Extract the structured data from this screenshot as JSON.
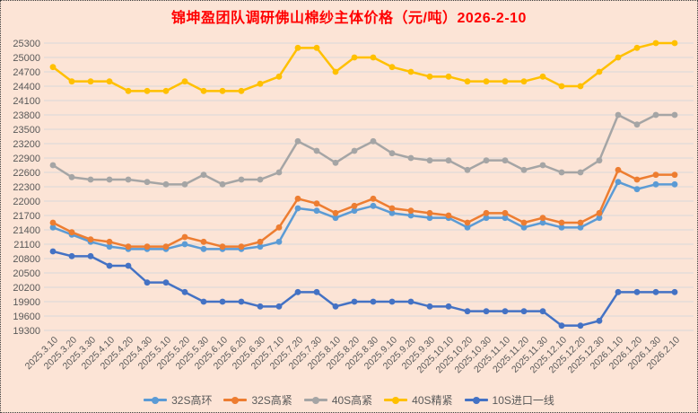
{
  "title": "锦坤盈团队调研佛山棉纱主体价格（元/吨）2026-2-10",
  "colors": {
    "background": "#FCE4D6",
    "title": "#FF0000",
    "gridline": "#D9D9D9",
    "axis_text": "#595959"
  },
  "chart_data": {
    "type": "line",
    "title": "锦坤盈团队调研佛山棉纱主体价格（元/吨）2026-2-10",
    "xlabel": "",
    "ylabel": "",
    "ylim": [
      19300,
      25300
    ],
    "ytick_step": 300,
    "grid": true,
    "legend_position": "bottom",
    "categories": [
      "2025.3.10",
      "2025.3.20",
      "2025.3.30",
      "2025.4.10",
      "2025.4.20",
      "2025.4.30",
      "2025.5.10",
      "2025.5.20",
      "2025.5.30",
      "2025.6.10",
      "2025.6.20",
      "2025.6.30",
      "2025.7.10",
      "2025.7.20",
      "2025.7.30",
      "2025.8.10",
      "2025.8.20",
      "2025.8.30",
      "2025.9.10",
      "2025.9.20",
      "2025.9.30",
      "2025.10.10",
      "2025.10.20",
      "2025.10.30",
      "2025.11.10",
      "2025.11.20",
      "2025.11.30",
      "2025.12.10",
      "2025.12.20",
      "2025.12.30",
      "2026.1.10",
      "2026.1.20",
      "2026.1.30",
      "2026.2.10"
    ],
    "series": [
      {
        "name": "32S高环",
        "color": "#5B9BD5",
        "values": [
          21450,
          21300,
          21150,
          21050,
          21000,
          21000,
          21000,
          21100,
          21000,
          21000,
          21000,
          21050,
          21150,
          21850,
          21800,
          21650,
          21800,
          21900,
          21750,
          21700,
          21650,
          21650,
          21450,
          21650,
          21650,
          21450,
          21550,
          21450,
          21450,
          21650,
          22400,
          22250,
          22350,
          22350
        ]
      },
      {
        "name": "32S高紧",
        "color": "#ED7D31",
        "values": [
          21550,
          21350,
          21200,
          21150,
          21050,
          21050,
          21050,
          21250,
          21150,
          21050,
          21050,
          21150,
          21450,
          22050,
          21950,
          21750,
          21900,
          22050,
          21850,
          21800,
          21750,
          21700,
          21550,
          21750,
          21750,
          21550,
          21650,
          21550,
          21550,
          21750,
          22650,
          22450,
          22550,
          22550
        ]
      },
      {
        "name": "40S高紧",
        "color": "#A5A5A5",
        "values": [
          22750,
          22500,
          22450,
          22450,
          22450,
          22400,
          22350,
          22350,
          22550,
          22350,
          22450,
          22450,
          22600,
          23250,
          23050,
          22800,
          23050,
          23250,
          23000,
          22900,
          22850,
          22850,
          22650,
          22850,
          22850,
          22650,
          22750,
          22600,
          22600,
          22850,
          23800,
          23600,
          23800,
          23800
        ]
      },
      {
        "name": "40S精紧",
        "color": "#FFC000",
        "values": [
          24800,
          24500,
          24500,
          24500,
          24300,
          24300,
          24300,
          24500,
          24300,
          24300,
          24300,
          24450,
          24600,
          25200,
          25200,
          24700,
          25000,
          25000,
          24800,
          24700,
          24600,
          24600,
          24500,
          24500,
          24500,
          24500,
          24600,
          24400,
          24400,
          24700,
          25000,
          25200,
          25300,
          25300
        ]
      },
      {
        "name": "10S进口一线",
        "color": "#4472C4",
        "values": [
          20950,
          20850,
          20850,
          20650,
          20650,
          20300,
          20300,
          20100,
          19900,
          19900,
          19900,
          19800,
          19800,
          20100,
          20100,
          19800,
          19900,
          19900,
          19900,
          19900,
          19800,
          19800,
          19700,
          19700,
          19700,
          19700,
          19700,
          19400,
          19400,
          19500,
          20100,
          20100,
          20100,
          20100
        ]
      }
    ]
  }
}
